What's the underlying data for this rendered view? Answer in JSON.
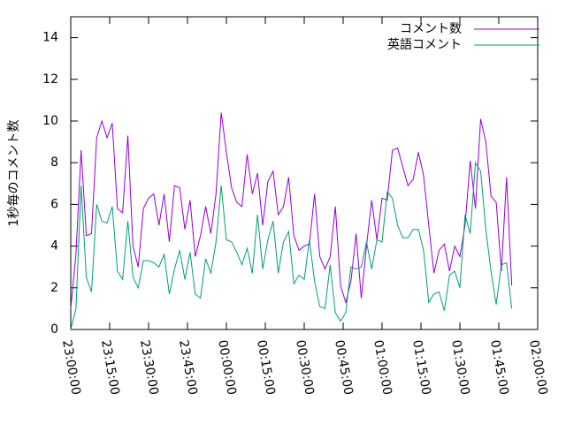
{
  "chart_data": {
    "type": "line",
    "ylabel": "1秒毎のコメント数",
    "x": [
      "23:00:00",
      "23:02:00",
      "23:04:00",
      "23:06:00",
      "23:08:00",
      "23:10:00",
      "23:12:00",
      "23:14:00",
      "23:16:00",
      "23:18:00",
      "23:20:00",
      "23:22:00",
      "23:24:00",
      "23:26:00",
      "23:28:00",
      "23:30:00",
      "23:32:00",
      "23:34:00",
      "23:36:00",
      "23:38:00",
      "23:40:00",
      "23:42:00",
      "23:44:00",
      "23:46:00",
      "23:48:00",
      "23:50:00",
      "23:52:00",
      "23:54:00",
      "23:56:00",
      "23:58:00",
      "00:00:00",
      "00:02:00",
      "00:04:00",
      "00:06:00",
      "00:08:00",
      "00:10:00",
      "00:12:00",
      "00:14:00",
      "00:16:00",
      "00:18:00",
      "00:20:00",
      "00:22:00",
      "00:24:00",
      "00:26:00",
      "00:28:00",
      "00:30:00",
      "00:32:00",
      "00:34:00",
      "00:36:00",
      "00:38:00",
      "00:40:00",
      "00:42:00",
      "00:44:00",
      "00:46:00",
      "00:48:00",
      "00:50:00",
      "00:52:00",
      "00:54:00",
      "00:56:00",
      "00:58:00",
      "01:00:00",
      "01:02:00",
      "01:04:00",
      "01:06:00",
      "01:08:00",
      "01:10:00",
      "01:12:00",
      "01:14:00",
      "01:16:00",
      "01:18:00",
      "01:20:00",
      "01:22:00",
      "01:24:00",
      "01:26:00",
      "01:28:00",
      "01:30:00",
      "01:32:00",
      "01:34:00",
      "01:36:00",
      "01:38:00",
      "01:40:00",
      "01:42:00",
      "01:44:00",
      "01:46:00",
      "01:48:00",
      "01:50:00"
    ],
    "series": [
      {
        "name": "コメント数",
        "color": "#9400d3",
        "values": [
          1.0,
          3.6,
          8.6,
          4.5,
          4.6,
          9.2,
          10.0,
          9.2,
          9.9,
          5.8,
          5.6,
          9.3,
          4.0,
          3.0,
          5.8,
          6.3,
          6.5,
          5.0,
          6.5,
          4.2,
          6.9,
          6.8,
          4.8,
          6.2,
          3.5,
          4.5,
          5.9,
          4.6,
          6.5,
          10.4,
          8.5,
          6.8,
          6.1,
          5.9,
          8.4,
          6.5,
          7.5,
          5.0,
          7.1,
          7.6,
          5.5,
          5.9,
          7.3,
          4.5,
          3.8,
          4.0,
          4.1,
          6.5,
          3.5,
          2.9,
          3.5,
          5.9,
          2.1,
          1.3,
          2.3,
          4.6,
          1.5,
          4.0,
          6.2,
          4.3,
          6.3,
          6.2,
          8.6,
          8.7,
          7.8,
          6.9,
          7.2,
          8.5,
          7.4,
          5.0,
          2.7,
          3.8,
          4.1,
          2.8,
          4.0,
          3.5,
          5.0,
          8.1,
          5.8,
          10.1,
          9.0,
          6.4,
          6.1,
          2.8,
          7.3,
          2.1
        ]
      },
      {
        "name": "英語コメント",
        "color": "#009e73",
        "values": [
          0.0,
          1.0,
          6.9,
          2.5,
          1.8,
          6.0,
          5.2,
          5.1,
          5.9,
          2.8,
          2.4,
          5.2,
          2.5,
          2.0,
          3.3,
          3.3,
          3.2,
          3.0,
          3.6,
          1.7,
          2.9,
          3.8,
          2.4,
          3.7,
          1.7,
          1.5,
          3.4,
          2.7,
          4.2,
          6.9,
          4.3,
          4.2,
          3.7,
          3.1,
          3.9,
          2.7,
          5.5,
          2.9,
          4.3,
          5.2,
          2.7,
          4.2,
          4.7,
          2.2,
          2.6,
          2.4,
          4.3,
          2.3,
          1.1,
          1.0,
          3.1,
          0.8,
          0.4,
          0.8,
          3.0,
          2.9,
          3.0,
          4.2,
          2.9,
          4.3,
          4.2,
          6.6,
          6.3,
          5.0,
          4.4,
          4.4,
          4.8,
          4.8,
          3.8,
          1.3,
          1.7,
          1.8,
          0.9,
          2.6,
          2.8,
          2.0,
          5.5,
          4.6,
          8.0,
          7.6,
          4.8,
          2.8,
          1.2,
          3.1,
          3.2,
          1.0
        ]
      }
    ],
    "xlim": [
      "23:00:00",
      "02:00:00"
    ],
    "xticks": [
      "23:00:00",
      "23:15:00",
      "23:30:00",
      "23:45:00",
      "00:00:00",
      "00:15:00",
      "00:30:00",
      "00:45:00",
      "01:00:00",
      "01:15:00",
      "01:30:00",
      "01:45:00",
      "02:00:00"
    ],
    "ylim": [
      0,
      15
    ],
    "yticks": [
      0,
      2,
      4,
      6,
      8,
      10,
      12,
      14
    ],
    "legend": "top-right",
    "grid": false
  }
}
